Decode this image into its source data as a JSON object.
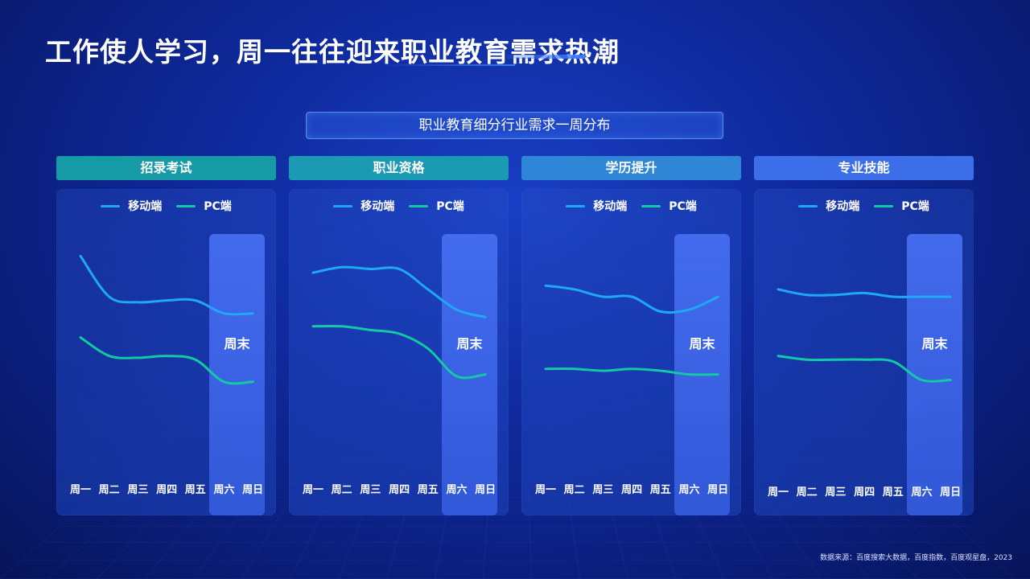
{
  "title": "工作使人学习，周一往往迎来职业教育需求热潮",
  "subtitle": "职业教育细分行业需求一周分布",
  "legend": {
    "mobile": "移动端",
    "pc": "PC端"
  },
  "weekend_label": "周末",
  "source": "数据来源：百度搜索大数据，百度指数，百度观星盘，2023",
  "colors": {
    "mobile": "#1fa8f5",
    "pc": "#12c9a4"
  },
  "chart_data": [
    {
      "type": "line",
      "title": "招录考试",
      "header_color": "#169aa6",
      "categories": [
        "周一",
        "周二",
        "周三",
        "周四",
        "周五",
        "周六",
        "周日"
      ],
      "series": [
        {
          "name": "移动端",
          "values": [
            92,
            70,
            67,
            68,
            68,
            61,
            61
          ]
        },
        {
          "name": "PC端",
          "values": [
            48,
            38,
            37,
            38,
            36,
            24,
            24
          ]
        }
      ],
      "ylim": [
        0,
        100
      ]
    },
    {
      "type": "line",
      "title": "职业资格",
      "header_color": "#1b9ab4",
      "categories": [
        "周一",
        "周二",
        "周三",
        "周四",
        "周五",
        "周六",
        "周日"
      ],
      "series": [
        {
          "name": "移动端",
          "values": [
            83,
            86,
            85,
            85,
            74,
            63,
            59
          ]
        },
        {
          "name": "PC端",
          "values": [
            54,
            54,
            52,
            50,
            42,
            27,
            28
          ]
        }
      ],
      "ylim": [
        0,
        100
      ]
    },
    {
      "type": "line",
      "title": "学历提升",
      "header_color": "#2f86d6",
      "categories": [
        "周一",
        "周二",
        "周三",
        "周四",
        "周五",
        "周六",
        "周日"
      ],
      "series": [
        {
          "name": "移动端",
          "values": [
            76,
            74,
            70,
            70,
            62,
            63,
            70
          ]
        },
        {
          "name": "PC端",
          "values": [
            31,
            31,
            30,
            31,
            30,
            28,
            28
          ]
        }
      ],
      "ylim": [
        0,
        100
      ]
    },
    {
      "type": "line",
      "title": "专业技能",
      "header_color": "#3c6eea",
      "categories": [
        "周一",
        "周二",
        "周三",
        "周四",
        "周五",
        "周六",
        "周日"
      ],
      "series": [
        {
          "name": "移动端",
          "values": [
            74,
            71,
            71,
            72,
            70,
            70,
            70
          ]
        },
        {
          "name": "PC端",
          "values": [
            38,
            36,
            36,
            36,
            35,
            25,
            25
          ]
        }
      ],
      "ylim": [
        0,
        100
      ]
    }
  ]
}
